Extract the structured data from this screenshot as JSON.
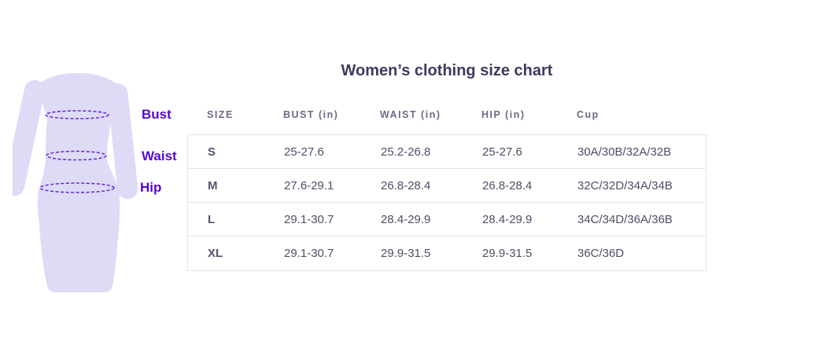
{
  "title": "Women’s clothing size chart",
  "figure": {
    "illustration": "woman-dress-with-measurement-lines",
    "labels": {
      "bust": "Bust",
      "waist": "Waist",
      "hip": "Hip"
    }
  },
  "table": {
    "columns": [
      "SIZE",
      "BUST (in)",
      "WAIST (in)",
      "HIP (in)",
      "Cup"
    ],
    "rows": [
      {
        "size": "S",
        "bust": "25-27.6",
        "waist": "25.2-26.8",
        "hip": "25-27.6",
        "cup": "30A/30B/32A/32B"
      },
      {
        "size": "M",
        "bust": "27.6-29.1",
        "waist": "26.8-28.4",
        "hip": "26.8-28.4",
        "cup": "32C/32D/34A/34B"
      },
      {
        "size": "L",
        "bust": "29.1-30.7",
        "waist": "28.4-29.9",
        "hip": "28.4-29.9",
        "cup": "34C/34D/36A/36B"
      },
      {
        "size": "XL",
        "bust": "29.1-30.7",
        "waist": "29.9-31.5",
        "hip": "29.9-31.5",
        "cup": "36C/36D"
      }
    ]
  },
  "colors": {
    "accent_purple": "#5606CE",
    "dress_fill": "#DEDBF7",
    "dash_stroke": "#6328D2",
    "title_text": "#3C3B5E",
    "header_text": "#6A6A84",
    "body_text": "#4E4E68",
    "table_border": "#E4E3EB",
    "background": "#FFFFFF"
  }
}
